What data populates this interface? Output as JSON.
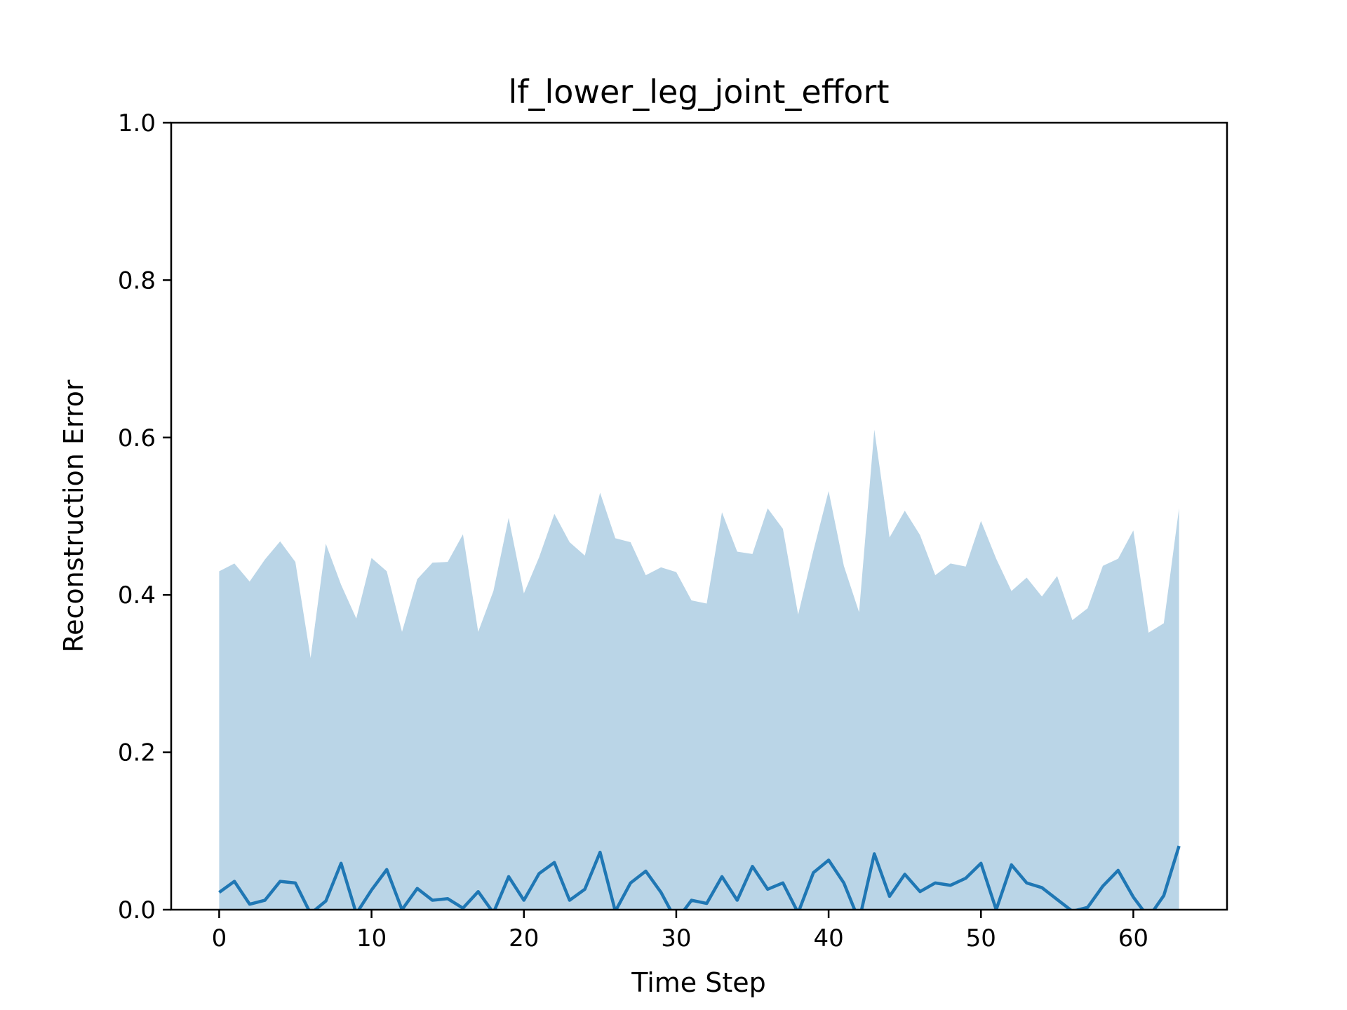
{
  "chart_data": {
    "type": "line",
    "title": "lf_lower_leg_joint_effort",
    "xlabel": "Time Step",
    "ylabel": "Reconstruction Error",
    "xlim": [
      -3.15,
      66.15
    ],
    "ylim": [
      0.0,
      1.0
    ],
    "xticks": [
      0,
      10,
      20,
      30,
      40,
      50,
      60
    ],
    "yticks": [
      0.0,
      0.2,
      0.4,
      0.6,
      0.8,
      1.0
    ],
    "xtick_labels": [
      "0",
      "10",
      "20",
      "30",
      "40",
      "50",
      "60"
    ],
    "ytick_labels": [
      "0.0",
      "0.2",
      "0.4",
      "0.6",
      "0.8",
      "1.0"
    ],
    "grid": false,
    "line_color": "#1f77b4",
    "band_color": "#bad5e7",
    "x": [
      0,
      1,
      2,
      3,
      4,
      5,
      6,
      7,
      8,
      9,
      10,
      11,
      12,
      13,
      14,
      15,
      16,
      17,
      18,
      19,
      20,
      21,
      22,
      23,
      24,
      25,
      26,
      27,
      28,
      29,
      30,
      31,
      32,
      33,
      34,
      35,
      36,
      37,
      38,
      39,
      40,
      41,
      42,
      43,
      44,
      45,
      46,
      47,
      48,
      49,
      50,
      51,
      52,
      53,
      54,
      55,
      56,
      57,
      58,
      59,
      60,
      61,
      62,
      63
    ],
    "series": [
      {
        "values": [
          0.022,
          0.036,
          0.007,
          0.012,
          0.036,
          0.034,
          -0.005,
          0.011,
          0.059,
          -0.005,
          0.025,
          0.051,
          0.0,
          0.027,
          0.012,
          0.014,
          0.002,
          0.023,
          -0.004,
          0.042,
          0.012,
          0.046,
          0.06,
          0.012,
          0.026,
          0.073,
          -0.002,
          0.034,
          0.049,
          0.022,
          -0.014,
          0.012,
          0.008,
          0.042,
          0.012,
          0.055,
          0.026,
          0.034,
          -0.004,
          0.047,
          0.063,
          0.034,
          -0.014,
          0.071,
          0.017,
          0.045,
          0.023,
          0.034,
          0.031,
          0.04,
          0.059,
          0.0,
          0.057,
          0.034,
          0.028,
          0.013,
          -0.002,
          0.003,
          0.03,
          0.05,
          0.016,
          -0.01,
          0.018,
          0.081
        ]
      }
    ],
    "band": {
      "lower": [
        0.0,
        0.0,
        0.0,
        0.0,
        0.0,
        0.0,
        0.0,
        0.0,
        0.0,
        0.0,
        0.0,
        0.0,
        0.0,
        0.0,
        0.0,
        0.0,
        0.0,
        0.0,
        0.0,
        0.0,
        0.0,
        0.0,
        0.0,
        0.0,
        0.0,
        0.0,
        0.0,
        0.0,
        0.0,
        0.0,
        0.0,
        0.0,
        0.0,
        0.0,
        0.0,
        0.0,
        0.0,
        0.0,
        0.0,
        0.0,
        0.0,
        0.0,
        0.0,
        0.0,
        0.0,
        0.0,
        0.0,
        0.0,
        0.0,
        0.0,
        0.0,
        0.0,
        0.0,
        0.0,
        0.0,
        0.0,
        0.0,
        0.0,
        0.0,
        0.0,
        0.0,
        0.0,
        0.0,
        0.0
      ],
      "upper": [
        0.43,
        0.44,
        0.417,
        0.445,
        0.468,
        0.442,
        0.32,
        0.465,
        0.413,
        0.37,
        0.447,
        0.43,
        0.353,
        0.42,
        0.441,
        0.442,
        0.477,
        0.353,
        0.405,
        0.498,
        0.402,
        0.448,
        0.503,
        0.467,
        0.45,
        0.53,
        0.472,
        0.467,
        0.425,
        0.435,
        0.429,
        0.393,
        0.389,
        0.505,
        0.455,
        0.452,
        0.51,
        0.484,
        0.375,
        0.456,
        0.532,
        0.437,
        0.378,
        0.61,
        0.473,
        0.507,
        0.476,
        0.425,
        0.44,
        0.436,
        0.494,
        0.446,
        0.405,
        0.422,
        0.398,
        0.424,
        0.368,
        0.383,
        0.437,
        0.446,
        0.482,
        0.352,
        0.364,
        0.51
      ]
    }
  }
}
